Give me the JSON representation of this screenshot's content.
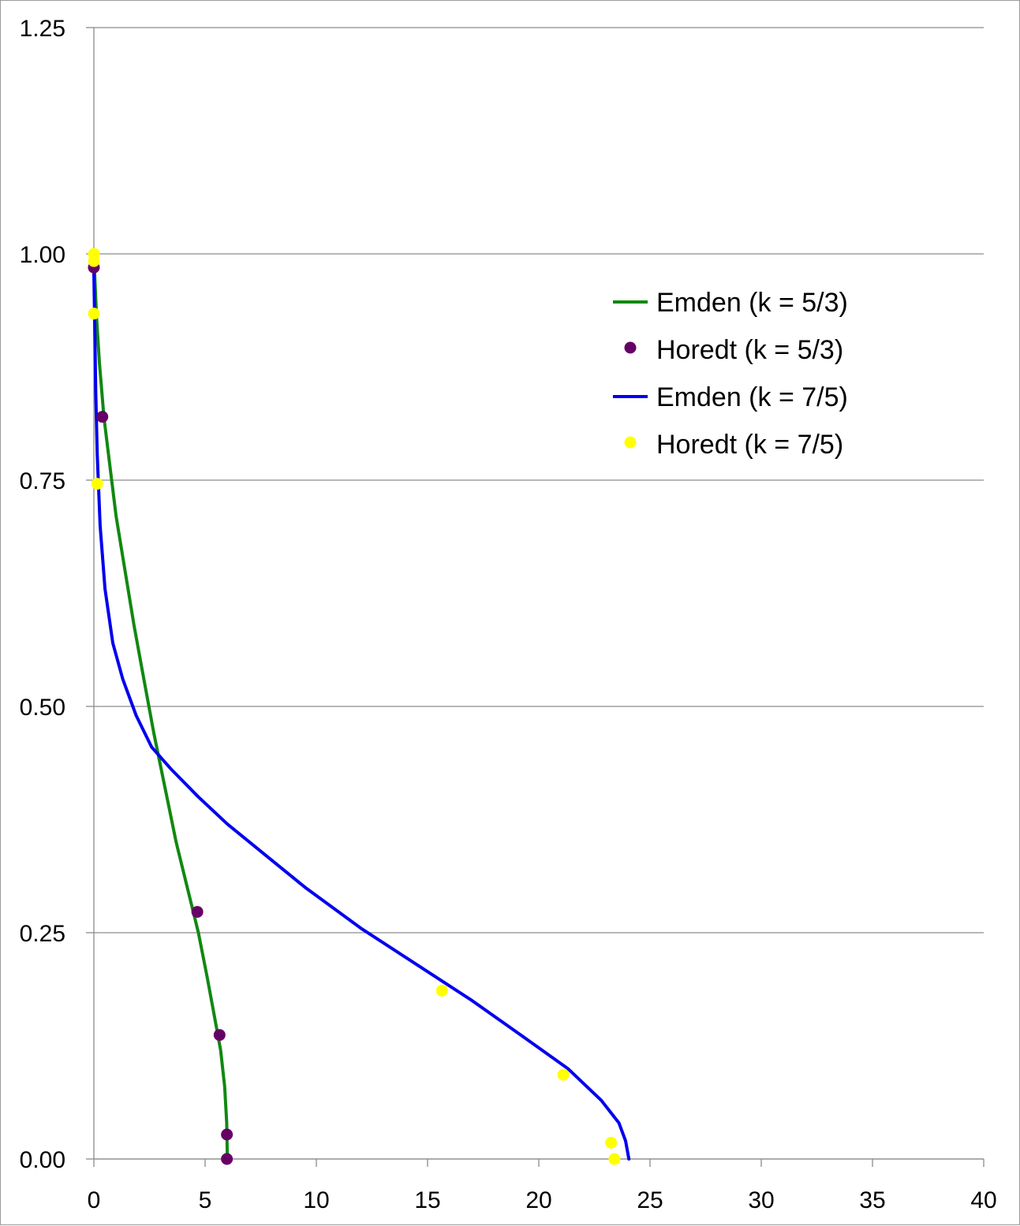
{
  "chart_data": {
    "type": "scatter",
    "title": "",
    "xlabel": "",
    "ylabel": "",
    "xlim": [
      0,
      40
    ],
    "ylim": [
      0,
      1.25
    ],
    "x_ticks": [
      "0",
      "5",
      "10",
      "15",
      "20",
      "25",
      "30",
      "35",
      "40"
    ],
    "y_ticks": [
      "0.00",
      "0.25",
      "0.50",
      "0.75",
      "1.00",
      "1.25"
    ],
    "grid": "horizontal",
    "legend_position": "upper-right",
    "series": [
      {
        "name": "Emden (k = 5/3)",
        "style": "line",
        "color": "#118811",
        "points": [
          [
            0,
            1.0
          ],
          [
            0.05,
            0.97
          ],
          [
            0.12,
            0.93
          ],
          [
            0.25,
            0.88
          ],
          [
            0.45,
            0.82
          ],
          [
            0.7,
            0.77
          ],
          [
            1.0,
            0.71
          ],
          [
            1.4,
            0.65
          ],
          [
            1.8,
            0.59
          ],
          [
            2.25,
            0.53
          ],
          [
            2.7,
            0.47
          ],
          [
            3.2,
            0.41
          ],
          [
            3.7,
            0.35
          ],
          [
            4.2,
            0.3
          ],
          [
            4.7,
            0.25
          ],
          [
            5.1,
            0.2
          ],
          [
            5.4,
            0.16
          ],
          [
            5.7,
            0.12
          ],
          [
            5.88,
            0.08
          ],
          [
            5.97,
            0.04
          ],
          [
            6.0,
            0.0
          ]
        ]
      },
      {
        "name": "Horedt (k = 5/3)",
        "style": "marker",
        "color": "#660066",
        "points": [
          [
            0,
            0.985
          ],
          [
            0.38,
            0.82
          ],
          [
            4.65,
            0.273
          ],
          [
            5.65,
            0.137
          ],
          [
            5.98,
            0.027
          ],
          [
            5.98,
            0.0
          ]
        ]
      },
      {
        "name": "Emden (k = 7/5)",
        "style": "line",
        "color": "#0000ee",
        "points": [
          [
            0,
            0.98
          ],
          [
            0.04,
            0.92
          ],
          [
            0.08,
            0.85
          ],
          [
            0.15,
            0.78
          ],
          [
            0.28,
            0.7
          ],
          [
            0.5,
            0.63
          ],
          [
            0.85,
            0.57
          ],
          [
            1.3,
            0.53
          ],
          [
            1.9,
            0.49
          ],
          [
            2.6,
            0.455
          ],
          [
            3.5,
            0.43
          ],
          [
            4.7,
            0.4
          ],
          [
            6.0,
            0.37
          ],
          [
            7.5,
            0.34
          ],
          [
            9.5,
            0.3
          ],
          [
            12.0,
            0.255
          ],
          [
            14.5,
            0.215
          ],
          [
            17.0,
            0.175
          ],
          [
            19.3,
            0.135
          ],
          [
            21.3,
            0.1
          ],
          [
            22.8,
            0.065
          ],
          [
            23.6,
            0.04
          ],
          [
            23.9,
            0.02
          ],
          [
            24.05,
            0.0
          ]
        ]
      },
      {
        "name": "Horedt (k = 7/5)",
        "style": "marker",
        "color": "#ffff00",
        "points": [
          [
            0,
            1.0
          ],
          [
            0,
            0.992
          ],
          [
            0,
            0.934
          ],
          [
            0.15,
            0.746
          ],
          [
            15.65,
            0.186
          ],
          [
            21.1,
            0.093
          ],
          [
            23.25,
            0.018
          ],
          [
            23.4,
            0.0
          ]
        ]
      }
    ]
  }
}
